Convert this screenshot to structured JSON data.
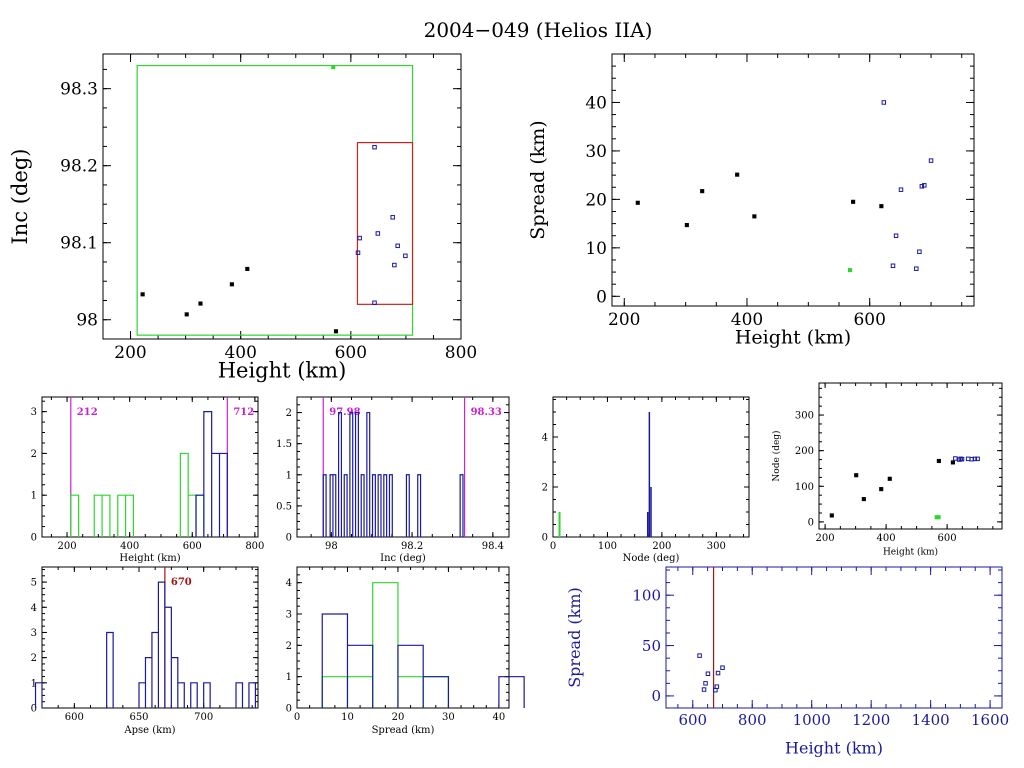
{
  "title": "2004−049 (Helios IIA)",
  "colors": {
    "axis": "#000000",
    "blue": "#1a1aa0",
    "green": "#2ed62e",
    "red": "#cc2222",
    "magenta": "#cc22cc",
    "darkred": "#aa1111"
  },
  "chart_data": [
    {
      "id": "inc-vs-height",
      "type": "scatter",
      "xlabel": "Height (km)",
      "ylabel": "Inc (deg)",
      "xlim": [
        150,
        800
      ],
      "ylim": [
        97.975,
        98.345
      ],
      "xticks": [
        "200",
        "400",
        "600",
        "800"
      ],
      "xtick_values": [
        200,
        400,
        600,
        800
      ],
      "yticks": [
        "98",
        "98.1",
        "98.2",
        "98.3"
      ],
      "ytick_values": [
        98.0,
        98.1,
        98.2,
        98.3
      ],
      "boxes": [
        {
          "color": "green",
          "x": [
            212,
            712
          ],
          "y": [
            97.98,
            98.33
          ]
        },
        {
          "color": "red",
          "x": [
            612,
            712
          ],
          "y": [
            98.02,
            98.23
          ]
        }
      ],
      "series": [
        {
          "color": "black",
          "points": [
            [
              222,
              98.033
            ],
            [
              302,
              98.007
            ],
            [
              327,
              98.021
            ],
            [
              384,
              98.046
            ],
            [
              412,
              98.066
            ],
            [
              573,
              97.985
            ]
          ]
        },
        {
          "color": "green",
          "points": [
            [
              568,
              98.328
            ]
          ]
        },
        {
          "color": "blue",
          "points": [
            [
              613,
              98.087
            ],
            [
              616,
              98.106
            ],
            [
              643,
              98.224
            ],
            [
              649,
              98.112
            ],
            [
              643,
              98.022
            ],
            [
              676,
              98.133
            ],
            [
              685,
              98.096
            ],
            [
              679,
              98.071
            ],
            [
              699,
              98.083
            ]
          ]
        }
      ]
    },
    {
      "id": "spread-vs-height",
      "type": "scatter",
      "xlabel": "Height (km)",
      "ylabel": "Spread (km)",
      "xlim": [
        180,
        770
      ],
      "ylim": [
        -2,
        50
      ],
      "xticks": [
        "200",
        "400",
        "600"
      ],
      "xtick_values": [
        200,
        400,
        600
      ],
      "yticks": [
        "0",
        "10",
        "20",
        "30",
        "40"
      ],
      "ytick_values": [
        0,
        10,
        20,
        30,
        40
      ],
      "series": [
        {
          "color": "black",
          "points": [
            [
              222,
              19.3
            ],
            [
              302,
              14.7
            ],
            [
              327,
              21.7
            ],
            [
              384,
              25.1
            ],
            [
              412,
              16.5
            ],
            [
              573,
              19.5
            ],
            [
              619,
              18.6
            ]
          ]
        },
        {
          "color": "green",
          "points": [
            [
              568,
              5.4
            ]
          ]
        },
        {
          "color": "blue",
          "points": [
            [
              623,
              40.0
            ],
            [
              638,
              6.3
            ],
            [
              643,
              12.5
            ],
            [
              651,
              22.0
            ],
            [
              676,
              5.7
            ],
            [
              681,
              9.2
            ],
            [
              685,
              22.7
            ],
            [
              689,
              22.9
            ],
            [
              700,
              28.0
            ]
          ]
        }
      ]
    },
    {
      "id": "height-hist",
      "type": "histogram",
      "xlabel": "Height (km)",
      "xlim": [
        120,
        810
      ],
      "ylim": [
        0,
        3.35
      ],
      "xticks": [
        "200",
        "400",
        "600",
        "800"
      ],
      "xtick_values": [
        200,
        400,
        600,
        800
      ],
      "yticks": [
        "0",
        "1",
        "2",
        "3"
      ],
      "ytick_values": [
        0,
        1,
        2,
        3
      ],
      "bin_width": 25,
      "vlines": [
        {
          "x": 212,
          "label": "212"
        },
        {
          "x": 712,
          "label": "712"
        }
      ],
      "series": [
        {
          "color": "green",
          "bins": [
            [
              212,
              1
            ],
            [
              287,
              1
            ],
            [
              312,
              1
            ],
            [
              362,
              1
            ],
            [
              387,
              1
            ],
            [
              562,
              2
            ],
            [
              587,
              1
            ],
            [
              612,
              1
            ]
          ]
        },
        {
          "color": "blue",
          "bins": [
            [
              612,
              1
            ],
            [
              637,
              3
            ],
            [
              662,
              2
            ],
            [
              687,
              2
            ]
          ]
        }
      ]
    },
    {
      "id": "inc-hist",
      "type": "histogram",
      "xlabel": "Inc (deg)",
      "xlim": [
        97.915,
        98.44
      ],
      "ylim": [
        0,
        2.25
      ],
      "xticks": [
        "98",
        "98.2",
        "98.4"
      ],
      "xtick_values": [
        98.0,
        98.2,
        98.4
      ],
      "yticks": [
        "0",
        "0.5",
        "1",
        "1.5",
        "2"
      ],
      "ytick_values": [
        0,
        0.5,
        1,
        1.5,
        2
      ],
      "bin_width": 0.007,
      "vlines": [
        {
          "x": 97.98,
          "label": "97.98"
        },
        {
          "x": 98.33,
          "label": "98.33"
        }
      ],
      "series": [
        {
          "color": "blue",
          "bins": [
            [
              97.98,
              1
            ],
            [
              97.997,
              1
            ],
            [
              98.004,
              1
            ],
            [
              98.018,
              2
            ],
            [
              98.032,
              1
            ],
            [
              98.046,
              2
            ],
            [
              98.06,
              2
            ],
            [
              98.074,
              1
            ],
            [
              98.088,
              2
            ],
            [
              98.102,
              1
            ],
            [
              98.116,
              1
            ],
            [
              98.13,
              1
            ],
            [
              98.144,
              1
            ],
            [
              98.186,
              1
            ],
            [
              98.214,
              1
            ],
            [
              98.319,
              1
            ]
          ]
        }
      ]
    },
    {
      "id": "node-hist",
      "type": "histogram",
      "xlabel": "Node (deg)",
      "xlim": [
        0,
        360
      ],
      "ylim": [
        0,
        5.6
      ],
      "xticks": [
        "0",
        "100",
        "200",
        "300"
      ],
      "xtick_values": [
        0,
        100,
        200,
        300
      ],
      "yticks": [
        "0",
        "2",
        "4"
      ],
      "ytick_values": [
        0,
        2,
        4
      ],
      "series": [
        {
          "color": "green",
          "bars": [
            [
              12,
              1
            ]
          ]
        },
        {
          "color": "blue",
          "bars": [
            [
              174,
              1
            ],
            [
              177,
              5
            ],
            [
              180,
              2
            ]
          ]
        }
      ]
    },
    {
      "id": "node-vs-height",
      "type": "scatter",
      "xlabel": "Height (km)",
      "ylabel": "Node (deg)",
      "xlim": [
        180,
        780
      ],
      "ylim": [
        -20,
        390
      ],
      "xticks": [
        "200",
        "400",
        "600"
      ],
      "xtick_values": [
        200,
        400,
        600
      ],
      "yticks": [
        "0",
        "100",
        "200",
        "300"
      ],
      "ytick_values": [
        0,
        100,
        200,
        300
      ],
      "series": [
        {
          "color": "black",
          "points": [
            [
              222,
              18
            ],
            [
              302,
              131
            ],
            [
              327,
              64
            ],
            [
              384,
              92
            ],
            [
              412,
              121
            ],
            [
              573,
              171
            ],
            [
              619,
              167
            ]
          ]
        },
        {
          "color": "green",
          "points": [
            [
              566,
              13
            ],
            [
              572,
              13
            ]
          ]
        },
        {
          "color": "blue",
          "points": [
            [
              627,
              178
            ],
            [
              640,
              175
            ],
            [
              645,
              177
            ],
            [
              649,
              176
            ],
            [
              669,
              177
            ],
            [
              681,
              176
            ],
            [
              691,
              177
            ],
            [
              700,
              177
            ]
          ]
        }
      ]
    },
    {
      "id": "apse-hist",
      "type": "histogram",
      "xlabel": "Apse (km)",
      "xlim": [
        575,
        742
      ],
      "ylim": [
        0,
        5.6
      ],
      "xticks": [
        "600",
        "650",
        "700"
      ],
      "xtick_values": [
        600,
        650,
        700
      ],
      "yticks": [
        "0",
        "1",
        "2",
        "3",
        "4",
        "5"
      ],
      "ytick_values": [
        0,
        1,
        2,
        3,
        4,
        5
      ],
      "bin_width": 5,
      "vlines": [
        {
          "x": 670,
          "label": "670"
        }
      ],
      "series": [
        {
          "color": "blue",
          "bins": [
            [
              570,
              1
            ],
            [
              625,
              3
            ],
            [
              650,
              1
            ],
            [
              655,
              2
            ],
            [
              660,
              3
            ],
            [
              665,
              5
            ],
            [
              670,
              4
            ],
            [
              675,
              2
            ],
            [
              680,
              1
            ],
            [
              690,
              1
            ],
            [
              700,
              1
            ],
            [
              725,
              1
            ],
            [
              735,
              1
            ]
          ]
        }
      ]
    },
    {
      "id": "spread-hist",
      "type": "histogram",
      "xlabel": "Spread (km)",
      "xlim": [
        0,
        42
      ],
      "ylim": [
        0,
        4.5
      ],
      "xticks": [
        "0",
        "10",
        "20",
        "30",
        "40"
      ],
      "xtick_values": [
        0,
        10,
        20,
        30,
        40
      ],
      "yticks": [
        "0",
        "1",
        "2",
        "3",
        "4"
      ],
      "ytick_values": [
        0,
        1,
        2,
        3,
        4
      ],
      "bin_width": 5,
      "series": [
        {
          "color": "green",
          "bins": [
            [
              5,
              1
            ],
            [
              10,
              1
            ],
            [
              15,
              4
            ],
            [
              20,
              1
            ],
            [
              25,
              1
            ]
          ]
        },
        {
          "color": "blue",
          "bins": [
            [
              5,
              3
            ],
            [
              10,
              2
            ],
            [
              20,
              2
            ],
            [
              25,
              1
            ],
            [
              40,
              1
            ]
          ]
        }
      ]
    },
    {
      "id": "spread-vs-height-wide",
      "type": "scatter",
      "xlabel": "Height (km)",
      "ylabel": "Spread (km)",
      "xlim": [
        510,
        1640
      ],
      "ylim": [
        -12,
        128
      ],
      "xticks": [
        "600",
        "800",
        "1000",
        "1200",
        "1400",
        "1600"
      ],
      "xtick_values": [
        600,
        800,
        1000,
        1200,
        1400,
        1600
      ],
      "yticks": [
        "0",
        "50",
        "100"
      ],
      "ytick_values": [
        0,
        50,
        100
      ],
      "vlines": [
        {
          "x": 670,
          "label": ""
        }
      ],
      "series": [
        {
          "color": "blue",
          "points": [
            [
              623,
              40
            ],
            [
              638,
              6.3
            ],
            [
              643,
              12.5
            ],
            [
              651,
              22
            ],
            [
              676,
              5.7
            ],
            [
              681,
              9.2
            ],
            [
              685,
              22.7
            ],
            [
              700,
              28
            ]
          ]
        }
      ]
    }
  ]
}
